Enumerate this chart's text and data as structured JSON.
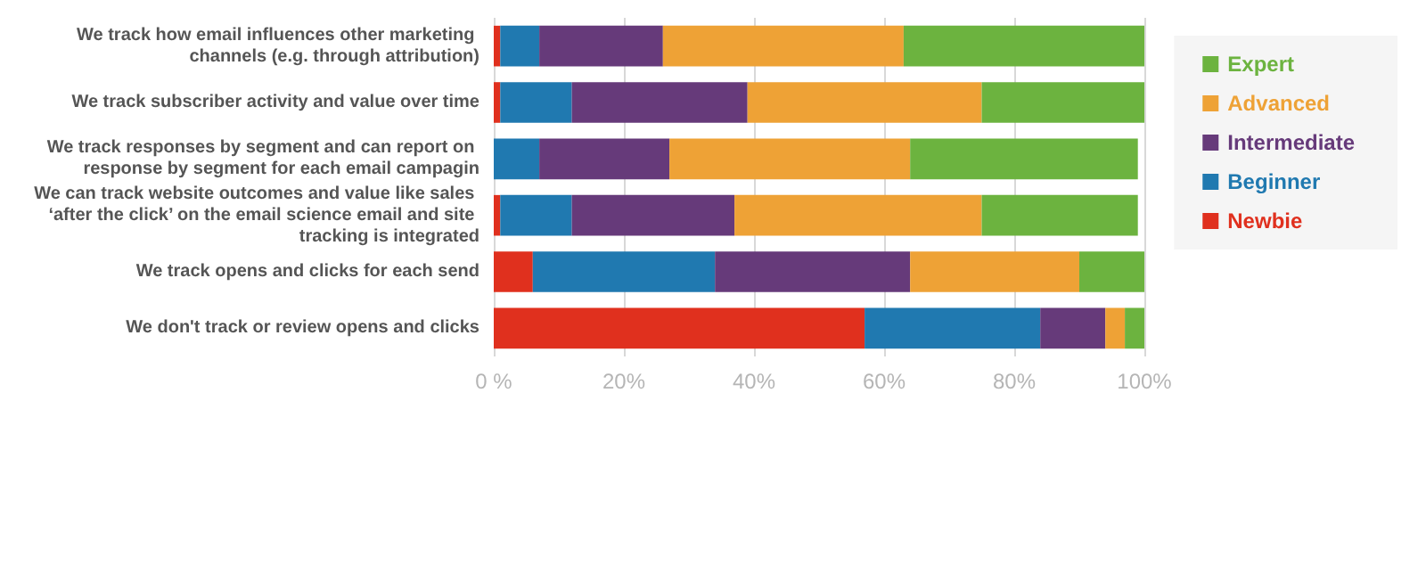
{
  "chart_data": {
    "type": "bar",
    "orientation": "horizontal",
    "stacked": true,
    "categories": [
      "We track how email influences other marketing channels (e.g. through attribution)",
      "We track subscriber activity and value over time",
      "We track responses by segment and can report on response by segment for each email campagin",
      "We can track website outcomes and value like sales ‘after the click’ on the email science email and site tracking is integrated",
      "We track opens and clicks for each send",
      "We don't track or review opens and clicks"
    ],
    "series": [
      {
        "name": "Newbie",
        "color": "#e0301e",
        "values": [
          1,
          1,
          0,
          1,
          6,
          57
        ]
      },
      {
        "name": "Beginner",
        "color": "#2079b0",
        "values": [
          6,
          11,
          7,
          11,
          28,
          27
        ]
      },
      {
        "name": "Intermediate",
        "color": "#663a7a",
        "values": [
          19,
          27,
          20,
          25,
          30,
          10
        ]
      },
      {
        "name": "Advanced",
        "color": "#eea236",
        "values": [
          37,
          36,
          37,
          38,
          26,
          3
        ]
      },
      {
        "name": "Expert",
        "color": "#6cb33f",
        "values": [
          37,
          25,
          35,
          24,
          10,
          3
        ]
      }
    ],
    "xlim": [
      0,
      100
    ],
    "xticks": [
      {
        "value": 0,
        "label": "0 %"
      },
      {
        "value": 20,
        "label": "20%"
      },
      {
        "value": 40,
        "label": "40%"
      },
      {
        "value": 60,
        "label": "60%"
      },
      {
        "value": 80,
        "label": "80%"
      },
      {
        "value": 100,
        "label": "100%"
      }
    ],
    "grid": "x",
    "legend": "top right"
  }
}
